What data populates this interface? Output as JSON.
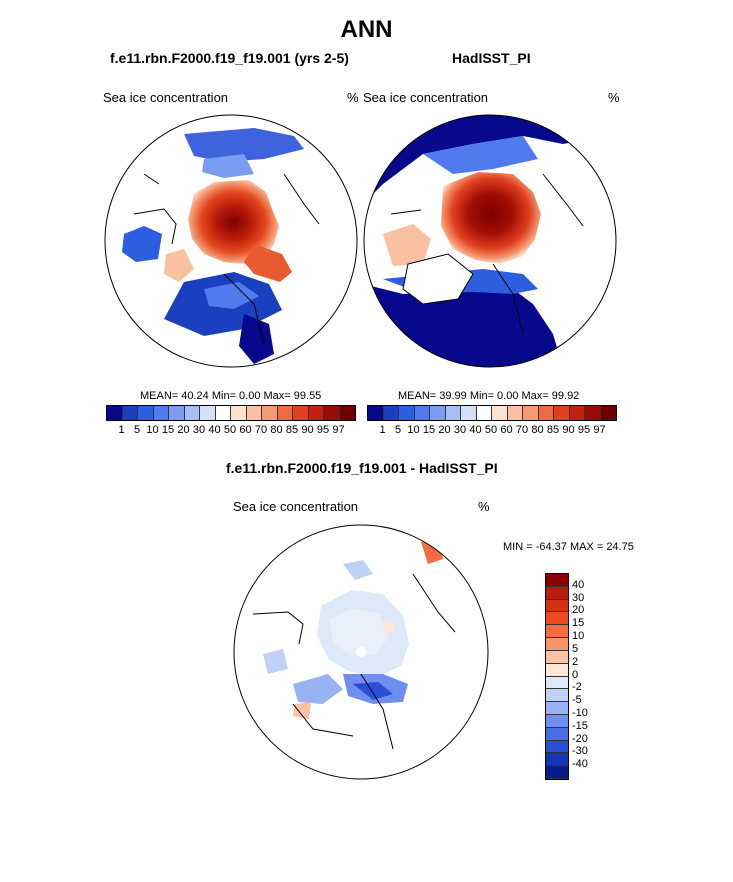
{
  "main_title": "ANN",
  "panels": [
    {
      "title": "f.e11.rbn.F2000.f19_f19.001 (yrs 2-5)",
      "var_label": "Sea ice concentration",
      "unit": "%",
      "stats": "MEAN=  40.24  Min=   0.00  Max=  99.55"
    },
    {
      "title": "HadISST_PI",
      "var_label": "Sea ice concentration",
      "unit": "%",
      "stats": "MEAN=  39.99  Min=   0.00  Max=  99.92"
    }
  ],
  "diff_panel": {
    "title": "f.e11.rbn.F2000.f19_f19.001 - HadISST_PI",
    "var_label": "Sea ice concentration",
    "unit": "%",
    "stats": "MIN = -64.37 MAX =  24.75"
  },
  "colorbar_levels": [
    "1",
    "5",
    "10",
    "15",
    "20",
    "30",
    "40",
    "50",
    "60",
    "70",
    "80",
    "85",
    "90",
    "95",
    "97"
  ],
  "colorbar_colors": [
    "#08088c",
    "#1a3fbf",
    "#2e5ee0",
    "#4f7bee",
    "#7a9cf2",
    "#a6bff5",
    "#d3e1f7",
    "#ffffff",
    "#fde2cf",
    "#f9c1a2",
    "#f59a72",
    "#ee6a43",
    "#e04020",
    "#c42010",
    "#9a0a04",
    "#6e0000"
  ],
  "diff_colorbar_levels": [
    "40",
    "30",
    "20",
    "15",
    "10",
    "5",
    "2",
    "0",
    "-2",
    "-5",
    "-10",
    "-15",
    "-20",
    "-30",
    "-40"
  ],
  "diff_colorbar_colors": [
    "#8a0000",
    "#b41e0a",
    "#d6320f",
    "#ef4a1e",
    "#f56c42",
    "#f8946c",
    "#fac1a4",
    "#fde6d6",
    "#dde8f8",
    "#bfd2f6",
    "#98b2f2",
    "#6f8ff0",
    "#4a6ee6",
    "#2a4fd6",
    "#1634b4",
    "#081d8c"
  ]
}
